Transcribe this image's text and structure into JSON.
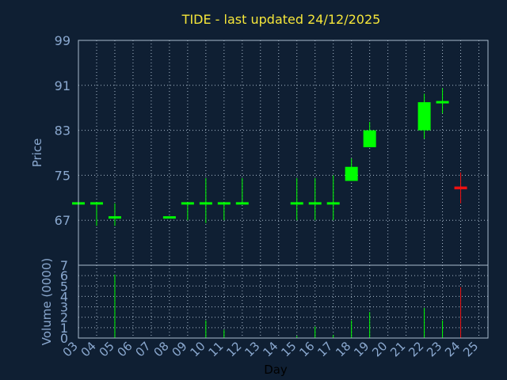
{
  "chart_data": [
    {
      "type": "candlestick",
      "title": "TIDE - last updated 24/12/2025",
      "xlabel": "Day",
      "ylabel": "Price",
      "ylim": [
        59,
        99
      ],
      "yticks": [
        "67",
        "75",
        "83",
        "91",
        "99"
      ],
      "grid": true,
      "x": [
        "03",
        "04",
        "05",
        "06",
        "07",
        "08",
        "09",
        "10",
        "11",
        "12",
        "13",
        "14",
        "15",
        "16",
        "17",
        "18",
        "19",
        "20",
        "21",
        "22",
        "23",
        "24",
        "25"
      ],
      "series": [
        {
          "day": "03",
          "open": 70,
          "high": 70,
          "low": 70,
          "close": 70
        },
        {
          "day": "04",
          "open": 70,
          "high": 70,
          "low": 66,
          "close": 70
        },
        {
          "day": "05",
          "open": 67.5,
          "high": 70,
          "low": 66,
          "close": 67.5
        },
        {
          "day": "08",
          "open": 67.5,
          "high": 67.5,
          "low": 67.5,
          "close": 67.5
        },
        {
          "day": "09",
          "open": 70,
          "high": 70,
          "low": 67,
          "close": 70
        },
        {
          "day": "10",
          "open": 70,
          "high": 74.5,
          "low": 66.5,
          "close": 70
        },
        {
          "day": "11",
          "open": 70,
          "high": 70,
          "low": 67,
          "close": 70
        },
        {
          "day": "12",
          "open": 70,
          "high": 74.5,
          "low": 70,
          "close": 70
        },
        {
          "day": "15",
          "open": 70,
          "high": 74.5,
          "low": 67,
          "close": 70
        },
        {
          "day": "16",
          "open": 70,
          "high": 74.5,
          "low": 67,
          "close": 70
        },
        {
          "day": "17",
          "open": 70,
          "high": 75,
          "low": 67,
          "close": 70
        },
        {
          "day": "18",
          "open": 74,
          "high": 78,
          "low": 74,
          "close": 76.5
        },
        {
          "day": "19",
          "open": 80,
          "high": 84.5,
          "low": 80,
          "close": 83
        },
        {
          "day": "22",
          "open": 83,
          "high": 89.5,
          "low": 81.5,
          "close": 88
        },
        {
          "day": "23",
          "open": 88,
          "high": 90.5,
          "low": 86,
          "close": 88
        },
        {
          "day": "24",
          "open": 73,
          "high": 75.5,
          "low": 70,
          "close": 72.5
        }
      ]
    },
    {
      "type": "bar",
      "ylabel": "Volume (0000)",
      "ylim": [
        0,
        7
      ],
      "yticks": [
        "0",
        "1",
        "2",
        "3",
        "4",
        "5",
        "6",
        "7"
      ],
      "categories": [
        "03",
        "04",
        "05",
        "08",
        "09",
        "10",
        "11",
        "12",
        "15",
        "16",
        "17",
        "18",
        "19",
        "22",
        "23",
        "24"
      ],
      "values": [
        0,
        0,
        6.1,
        0,
        0,
        1.7,
        0.8,
        0,
        0.2,
        1.1,
        0.3,
        1.7,
        2.5,
        2.9,
        1.7,
        4.9
      ],
      "colors": [
        "#00ff00",
        "#00ff00",
        "#00ff00",
        "#00ff00",
        "#00ff00",
        "#00ff00",
        "#00ff00",
        "#00ff00",
        "#00ff00",
        "#00ff00",
        "#00ff00",
        "#00ff00",
        "#00ff00",
        "#00ff00",
        "#00ff00",
        "#ee1111"
      ]
    }
  ],
  "colors": {
    "background": "#0f1f33",
    "title": "#f5e63a",
    "axis_text": "#8aa8cf",
    "xlabel": "#000000",
    "grid": "#aabbcc",
    "up": "#00ff00",
    "down": "#ee1111"
  }
}
